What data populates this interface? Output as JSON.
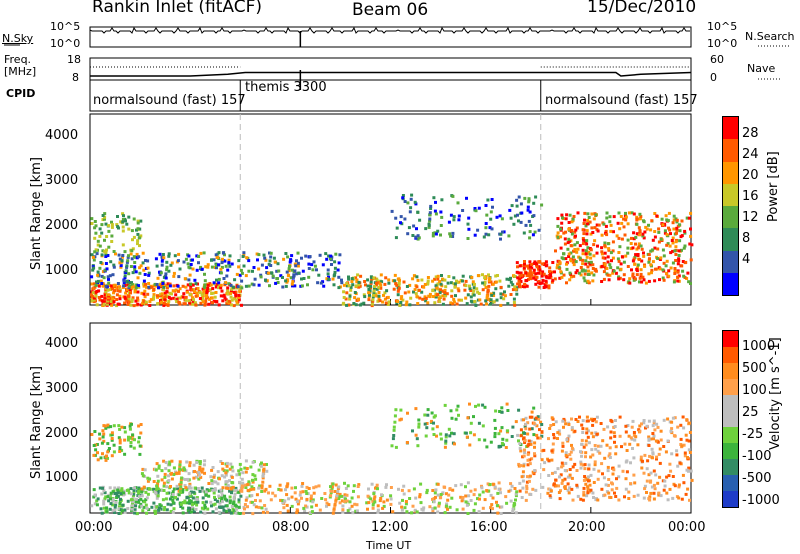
{
  "header": {
    "station": "Rankin Inlet (fitACF)",
    "beam": "Beam 06",
    "date": "15/Dec/2010"
  },
  "colors": {
    "velocity_scale": [
      "#ff0000",
      "#ff5a00",
      "#ff8c1e",
      "#ffa04b",
      "#bebebe",
      "#bebebe",
      "#6ed23c",
      "#3cb43c",
      "#328c64",
      "#2860b0",
      "#1e3cc8"
    ],
    "power_scale": [
      "#0000ff",
      "#3355aa",
      "#2e8b57",
      "#5aaa3c",
      "#c8c828",
      "#ff9600",
      "#ff5a00",
      "#ff0000"
    ]
  },
  "chart_data": [
    {
      "type": "line",
      "name": "noise-panel",
      "left_label": "N.Sky",
      "left_ticks": [
        "10^5",
        "10^0"
      ],
      "right_label": "N.Search",
      "right_ticks": [
        "10^5",
        "10^0"
      ]
    },
    {
      "type": "line",
      "name": "frequency-panel",
      "left_label": "Freq.",
      "left_unit": "[MHz]",
      "left_ticks": [
        "18",
        "8"
      ],
      "right_label": "Nave",
      "right_ticks": [
        "60",
        "0"
      ],
      "freq_steps": [
        {
          "x": 0,
          "y": 9.8
        },
        {
          "x": 4,
          "y": 9.8
        },
        {
          "x": 5.5,
          "y": 10.6
        },
        {
          "x": 6.2,
          "y": 11.4
        },
        {
          "x": 21,
          "y": 11.4
        },
        {
          "x": 21.2,
          "y": 9.8
        },
        {
          "x": 22,
          "y": 10.6
        },
        {
          "x": 24,
          "y": 11.4
        }
      ]
    },
    {
      "type": "table",
      "name": "cpid-panel",
      "label": "CPID",
      "segments": [
        {
          "text": "normalsound (fast) 157",
          "start": 0,
          "end": 6
        },
        {
          "text": "themis 3300",
          "start": 6,
          "end": 18
        },
        {
          "text": "normalsound (fast) 157",
          "start": 18,
          "end": 24
        }
      ]
    },
    {
      "type": "heatmap",
      "name": "power-panel",
      "ylabel": "Slant Range [km]",
      "yticks": [
        1000,
        2000,
        3000,
        4000
      ],
      "ylim": [
        180,
        4500
      ],
      "xlim": [
        0,
        24
      ],
      "colorbar_label": "Power [dB]",
      "colorbar_ticks": [
        4,
        8,
        12,
        16,
        20,
        24,
        28
      ]
    },
    {
      "type": "heatmap",
      "name": "velocity-panel",
      "ylabel": "Slant Range [km]",
      "yticks": [
        1000,
        2000,
        3000,
        4000
      ],
      "ylim": [
        180,
        4500
      ],
      "xlim": [
        0,
        24
      ],
      "colorbar_label": "Velocity [m s^-1]",
      "colorbar_ticks": [
        1000,
        500,
        100,
        25,
        -25,
        -100,
        -500,
        -1000
      ]
    }
  ],
  "x_axis": {
    "label": "Time UT",
    "ticks": [
      "00:00",
      "04:00",
      "08:00",
      "12:00",
      "16:00",
      "20:00",
      "00:00"
    ]
  }
}
